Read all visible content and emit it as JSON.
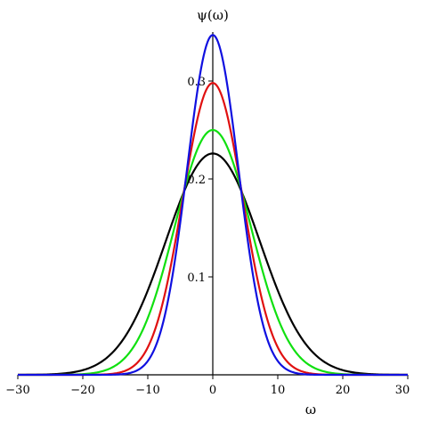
{
  "chart_data": {
    "type": "line",
    "xlabel": "ω",
    "ylabel": "ψ(ω)",
    "xlim": [
      -30,
      30
    ],
    "ylim": [
      0,
      0.35
    ],
    "x_ticks": [
      -30,
      -20,
      -10,
      0,
      10,
      20,
      30
    ],
    "x_tick_labels": [
      "−30",
      "−20",
      "−10",
      "0",
      "10",
      "20",
      "30"
    ],
    "y_ticks": [
      0.1,
      0.2,
      0.3
    ],
    "y_tick_labels": [
      "0.1",
      "0.2",
      "0.3"
    ],
    "grid": false,
    "axes_style": "crossing at origin",
    "series_function": "gaussian",
    "series": [
      {
        "color": "#1010e0",
        "peak": 0.347,
        "sigma": 3.95,
        "x_range": [
          -30,
          30
        ]
      },
      {
        "color": "#e01010",
        "peak": 0.298,
        "sigma": 4.6,
        "x_range": [
          -30,
          30
        ]
      },
      {
        "color": "#10e010",
        "peak": 0.25,
        "sigma": 5.85,
        "x_range": [
          -30,
          30
        ]
      },
      {
        "color": "#000000",
        "peak": 0.226,
        "sigma": 7.2,
        "x_range": [
          -30,
          30
        ]
      }
    ]
  }
}
